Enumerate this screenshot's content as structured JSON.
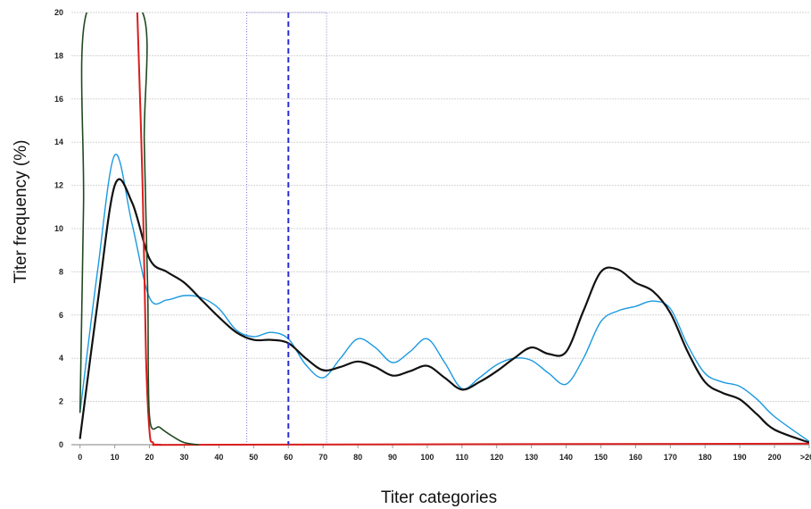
{
  "chart_data": {
    "type": "line",
    "title": "",
    "xlabel": "Titer categories",
    "ylabel": "Titer frequency (%)",
    "x_tick_labels": [
      "0",
      "10",
      "20",
      "30",
      "40",
      "50",
      "60",
      "70",
      "80",
      "90",
      "100",
      "110",
      "120",
      "130",
      "140",
      "150",
      "160",
      "170",
      "180",
      "190",
      "200",
      ">200"
    ],
    "y_ticks": [
      0,
      2,
      4,
      6,
      8,
      10,
      12,
      14,
      16,
      18,
      20
    ],
    "xlim": [
      -2.5,
      210
    ],
    "ylim": [
      0,
      20
    ],
    "grid": "horizontal",
    "reference_line_x": 60,
    "reference_band_x": [
      48,
      71
    ],
    "series": [
      {
        "color": "#1a99e0",
        "values": [
          [
            0,
            1.5
          ],
          [
            5,
            8
          ],
          [
            10,
            13.4
          ],
          [
            15,
            10.2
          ],
          [
            20,
            6.8
          ],
          [
            25,
            6.7
          ],
          [
            30,
            6.9
          ],
          [
            35,
            6.8
          ],
          [
            40,
            6.3
          ],
          [
            45,
            5.3
          ],
          [
            50,
            5
          ],
          [
            55,
            5.2
          ],
          [
            60,
            4.9
          ],
          [
            65,
            3.7
          ],
          [
            70,
            3.1
          ],
          [
            75,
            4
          ],
          [
            80,
            4.9
          ],
          [
            85,
            4.5
          ],
          [
            90,
            3.8
          ],
          [
            95,
            4.3
          ],
          [
            100,
            4.9
          ],
          [
            105,
            3.8
          ],
          [
            110,
            2.6
          ],
          [
            115,
            3.1
          ],
          [
            120,
            3.7
          ],
          [
            125,
            4
          ],
          [
            130,
            3.9
          ],
          [
            135,
            3.3
          ],
          [
            140,
            2.8
          ],
          [
            145,
            4
          ],
          [
            150,
            5.7
          ],
          [
            155,
            6.2
          ],
          [
            160,
            6.4
          ],
          [
            165,
            6.65
          ],
          [
            170,
            6.3
          ],
          [
            175,
            4.6
          ],
          [
            180,
            3.3
          ],
          [
            185,
            2.9
          ],
          [
            190,
            2.7
          ],
          [
            195,
            2.1
          ],
          [
            200,
            1.3
          ],
          [
            210,
            0.15
          ]
        ]
      },
      {
        "color": "#111111",
        "values": [
          [
            0,
            0.3
          ],
          [
            5,
            6.5
          ],
          [
            10,
            12
          ],
          [
            15,
            11.2
          ],
          [
            20,
            8.6
          ],
          [
            25,
            8
          ],
          [
            30,
            7.5
          ],
          [
            35,
            6.7
          ],
          [
            40,
            5.9
          ],
          [
            45,
            5.2
          ],
          [
            50,
            4.85
          ],
          [
            55,
            4.85
          ],
          [
            60,
            4.7
          ],
          [
            65,
            4
          ],
          [
            70,
            3.45
          ],
          [
            75,
            3.6
          ],
          [
            80,
            3.85
          ],
          [
            85,
            3.6
          ],
          [
            90,
            3.2
          ],
          [
            95,
            3.4
          ],
          [
            100,
            3.65
          ],
          [
            105,
            3.1
          ],
          [
            110,
            2.55
          ],
          [
            115,
            2.9
          ],
          [
            120,
            3.4
          ],
          [
            125,
            4
          ],
          [
            130,
            4.5
          ],
          [
            135,
            4.2
          ],
          [
            140,
            4.3
          ],
          [
            145,
            6.2
          ],
          [
            150,
            8
          ],
          [
            155,
            8.1
          ],
          [
            160,
            7.5
          ],
          [
            165,
            7.1
          ],
          [
            170,
            6.1
          ],
          [
            175,
            4.3
          ],
          [
            180,
            2.9
          ],
          [
            185,
            2.4
          ],
          [
            190,
            2.1
          ],
          [
            195,
            1.4
          ],
          [
            200,
            0.7
          ],
          [
            210,
            0.1
          ]
        ]
      },
      {
        "color": "#d81e1e",
        "values": [
          [
            16.5,
            20
          ],
          [
            18,
            12
          ],
          [
            19,
            4
          ],
          [
            20,
            0.6
          ],
          [
            21,
            0.1
          ],
          [
            23,
            0
          ],
          [
            40,
            0
          ],
          [
            210,
            0.05
          ]
        ]
      },
      {
        "color": "#1f4a1f",
        "values": [
          [
            0,
            1.5
          ],
          [
            1,
            11
          ],
          [
            1.9,
            20
          ],
          [
            18,
            20
          ],
          [
            18.5,
            14
          ],
          [
            19.5,
            7
          ],
          [
            20,
            1.3
          ],
          [
            23,
            0.8
          ],
          [
            27,
            0.35
          ],
          [
            30,
            0.1
          ],
          [
            34,
            0
          ]
        ]
      }
    ]
  }
}
